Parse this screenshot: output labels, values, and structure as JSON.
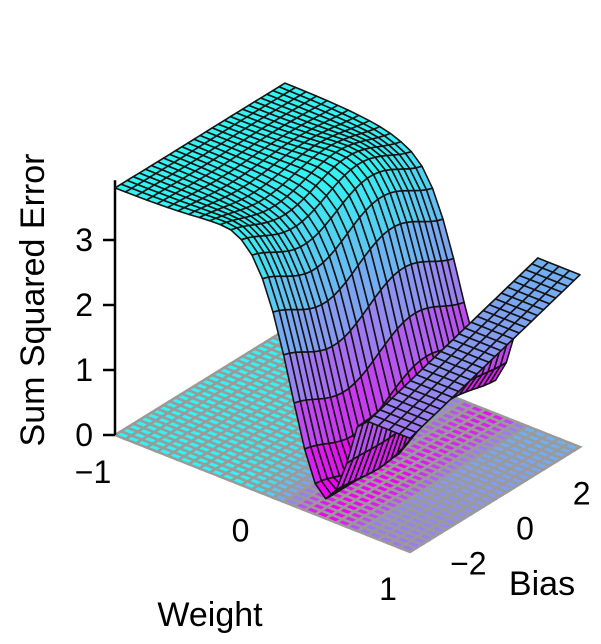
{
  "chart_data": {
    "type": "surface",
    "title": "",
    "xlabel": "Weight",
    "ylabel": "Bias",
    "zlabel": "Sum Squared Error",
    "xlim": [
      -1,
      1
    ],
    "ylim": [
      -3,
      3
    ],
    "zlim": [
      0,
      4
    ],
    "xticks": [
      "−1",
      "0",
      "1"
    ],
    "yticks": [
      "−2",
      "0",
      "2"
    ],
    "zticks": [
      "0",
      "1",
      "2",
      "3"
    ],
    "grid": false,
    "contour_projection": true,
    "colormap": [
      "#33f2f2",
      "#8f8ff0",
      "#f000f0"
    ],
    "edge_color": "#141414",
    "floor_edge_color": "#9a9a9a",
    "surface": {
      "description_of_shape": "error surface: high plateau (~3.8) at weight=-1, deep valley (~0.4) near weight=0.4, rising again toward weight=1",
      "weight_samples": [
        -1.0,
        -0.8,
        -0.6,
        -0.4,
        -0.2,
        0.0,
        0.2,
        0.4,
        0.6,
        0.8,
        1.0
      ],
      "bias_samples": [
        -3,
        -2,
        -1,
        0,
        1,
        2,
        3
      ],
      "sse_profile_at_bias_0": [
        3.8,
        3.7,
        3.55,
        3.3,
        2.8,
        2.1,
        1.2,
        0.45,
        0.9,
        1.6,
        2.1
      ]
    }
  }
}
